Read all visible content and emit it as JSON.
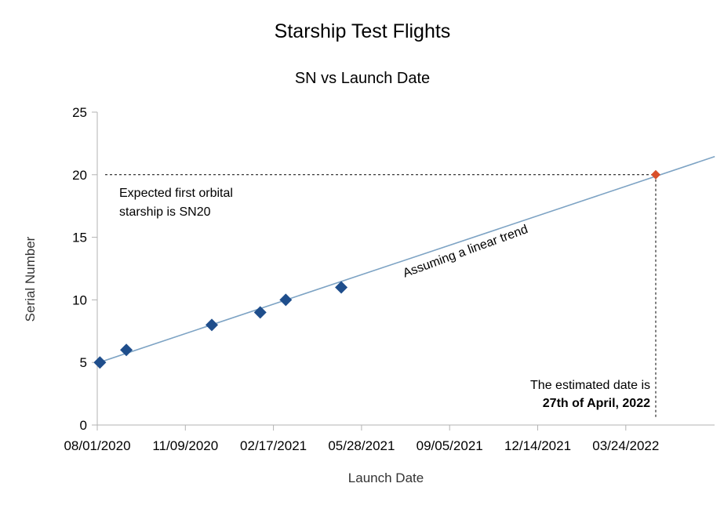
{
  "chart_data": {
    "type": "scatter",
    "title": "Starship Test Flights",
    "subtitle": "SN vs Launch Date",
    "xlabel": "Launch Date",
    "ylabel": "Serial Number",
    "xlim": [
      "2020-08-01",
      "2022-07-03"
    ],
    "ylim": [
      0,
      25
    ],
    "x_ticks": [
      "08/01/2020",
      "11/09/2020",
      "02/17/2021",
      "05/28/2021",
      "09/05/2021",
      "12/14/2021",
      "03/24/2022"
    ],
    "y_ticks": [
      0,
      5,
      10,
      15,
      20,
      25
    ],
    "grid": false,
    "series": [
      {
        "color": "#1f4e8c",
        "marker": "diamond",
        "points": [
          {
            "x": "2020-08-04",
            "y": 5
          },
          {
            "x": "2020-09-03",
            "y": 6
          },
          {
            "x": "2020-12-09",
            "y": 8
          },
          {
            "x": "2021-02-02",
            "y": 9
          },
          {
            "x": "2021-03-03",
            "y": 10
          },
          {
            "x": "2021-05-05",
            "y": 11
          }
        ]
      },
      {
        "color": "#d9502a",
        "marker": "diamond",
        "points": [
          {
            "x": "2022-04-27",
            "y": 20
          }
        ]
      }
    ],
    "trendline": {
      "type": "linear",
      "color": "#7da3c4",
      "from": {
        "x": "2020-08-01",
        "y": 4.95
      },
      "to": {
        "x": "2022-07-03",
        "y": 21.45
      }
    },
    "reference_lines": {
      "horizontal_y": 20,
      "vertical_x": "2022-04-27",
      "style": "dashed"
    },
    "annotations": {
      "orbital_line1": "Expected first orbital",
      "orbital_line2": "starship is SN20",
      "trend": "Assuming a linear trend",
      "estimate_line1": "The estimated date is",
      "estimate_line2": "27th of April, 2022"
    }
  }
}
